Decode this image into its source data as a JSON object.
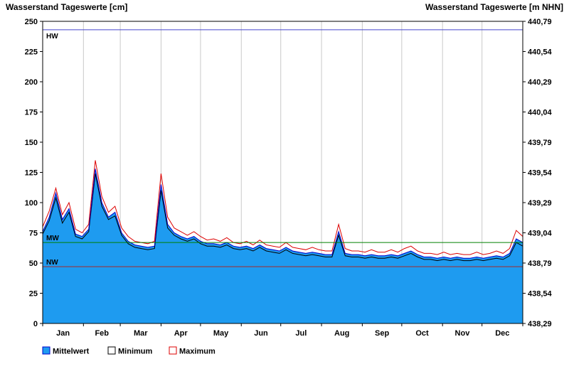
{
  "chart_data": {
    "type": "area",
    "title_left": "Wasserstand Tageswerte [cm]",
    "title_right": "Wasserstand Tageswerte [m NHN]",
    "x_axis": {
      "months": [
        "Jan",
        "Feb",
        "Mar",
        "Apr",
        "May",
        "Jun",
        "Jul",
        "Aug",
        "Sep",
        "Oct",
        "Nov",
        "Dec"
      ],
      "month_start_days": [
        0,
        31,
        59,
        90,
        120,
        151,
        181,
        212,
        243,
        273,
        304,
        334,
        365
      ],
      "domain_days": [
        0,
        365
      ]
    },
    "y_left": {
      "min": 0,
      "max": 250,
      "step": 25,
      "tick_labels": [
        "0",
        "25",
        "50",
        "75",
        "100",
        "125",
        "150",
        "175",
        "200",
        "225",
        "250"
      ]
    },
    "y_right": {
      "unit": "m NHN",
      "tick_labels": [
        "438,29",
        "438,54",
        "438,79",
        "439,04",
        "439,29",
        "439,54",
        "439,79",
        "440,04",
        "440,29",
        "440,54",
        "440,79"
      ]
    },
    "reference_lines": [
      {
        "label": "HW",
        "value_cm": 243,
        "color": "#4444CC"
      },
      {
        "label": "MW",
        "value_cm": 67,
        "color": "#008000"
      },
      {
        "label": "NW",
        "value_cm": 47,
        "color": "#A52A2A"
      }
    ],
    "sample_step_days": 5,
    "series": [
      {
        "name": "Mittelwert",
        "role": "mean",
        "color": "#1E9BF0",
        "line_color": "#0000CD",
        "values": [
          76,
          88,
          108,
          86,
          95,
          74,
          72,
          78,
          128,
          100,
          88,
          92,
          75,
          68,
          65,
          64,
          63,
          64,
          115,
          82,
          75,
          72,
          70,
          72,
          68,
          66,
          66,
          65,
          67,
          64,
          63,
          64,
          62,
          65,
          62,
          61,
          60,
          63,
          60,
          59,
          58,
          59,
          58,
          57,
          57,
          76,
          58,
          57,
          57,
          56,
          57,
          56,
          56,
          57,
          56,
          58,
          60,
          57,
          55,
          55,
          54,
          55,
          54,
          55,
          54,
          54,
          55,
          54,
          55,
          56,
          55,
          58,
          70,
          67
        ]
      },
      {
        "name": "Minimum",
        "role": "min",
        "color": "#000000",
        "values": [
          74,
          85,
          104,
          83,
          92,
          72,
          70,
          76,
          124,
          97,
          86,
          89,
          73,
          66,
          63,
          62,
          61,
          62,
          110,
          79,
          73,
          70,
          68,
          70,
          66,
          64,
          64,
          63,
          65,
          62,
          61,
          62,
          60,
          63,
          60,
          59,
          58,
          61,
          58,
          57,
          56,
          57,
          56,
          55,
          55,
          73,
          56,
          55,
          55,
          54,
          55,
          54,
          54,
          55,
          54,
          56,
          58,
          55,
          53,
          53,
          52,
          53,
          52,
          53,
          52,
          52,
          53,
          52,
          53,
          54,
          53,
          56,
          67,
          64
        ]
      },
      {
        "name": "Maximum",
        "role": "max",
        "color": "#DD0000",
        "values": [
          80,
          93,
          112,
          90,
          100,
          78,
          75,
          82,
          135,
          105,
          92,
          97,
          79,
          72,
          68,
          67,
          66,
          68,
          124,
          88,
          79,
          76,
          73,
          76,
          72,
          69,
          70,
          68,
          71,
          67,
          66,
          68,
          65,
          69,
          65,
          64,
          63,
          67,
          63,
          62,
          61,
          63,
          61,
          60,
          60,
          82,
          62,
          60,
          60,
          59,
          61,
          59,
          59,
          61,
          59,
          62,
          64,
          60,
          58,
          58,
          57,
          59,
          57,
          58,
          57,
          57,
          59,
          57,
          58,
          60,
          58,
          62,
          77,
          72
        ]
      }
    ],
    "legend": [
      {
        "label": "Mittelwert",
        "fill": "#1E9BF0",
        "border": "#0000CD"
      },
      {
        "label": "Minimum",
        "fill": "#FFFFFF",
        "border": "#000000"
      },
      {
        "label": "Maximum",
        "fill": "#FFFFFF",
        "border": "#DD0000"
      }
    ]
  }
}
